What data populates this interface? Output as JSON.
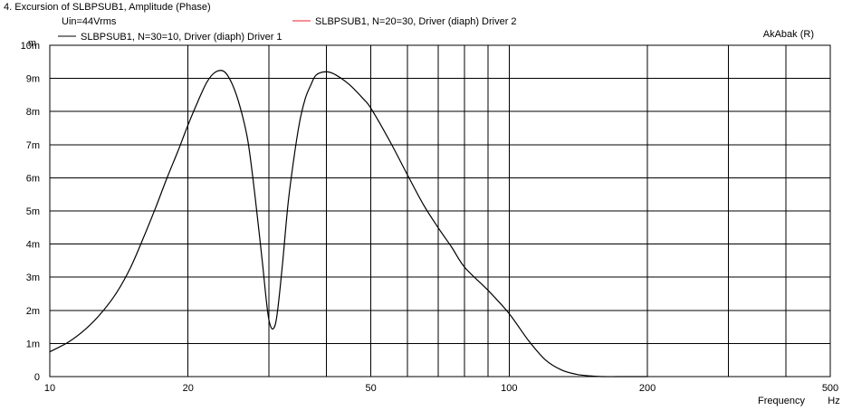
{
  "window": {
    "title": "4. Excursion of SLBPSUB1, Amplitude (Phase)"
  },
  "chart_data": {
    "type": "line",
    "title": "4. Excursion of SLBPSUB1, Amplitude (Phase)",
    "subtitle": "Uin=44Vrms",
    "watermark": "AkAbak (R)",
    "xlabel": "Frequency",
    "xunit": "Hz",
    "yunit": "m",
    "x_scale": "log",
    "xlim": [
      10,
      500
    ],
    "ylim": [
      0,
      0.01
    ],
    "grid": true,
    "x_ticks": [
      {
        "v": 10,
        "label": "10"
      },
      {
        "v": 20,
        "label": "20"
      },
      {
        "v": 30,
        "label": ""
      },
      {
        "v": 40,
        "label": ""
      },
      {
        "v": 50,
        "label": "50"
      },
      {
        "v": 60,
        "label": ""
      },
      {
        "v": 70,
        "label": ""
      },
      {
        "v": 80,
        "label": ""
      },
      {
        "v": 90,
        "label": ""
      },
      {
        "v": 100,
        "label": "100"
      },
      {
        "v": 200,
        "label": "200"
      },
      {
        "v": 300,
        "label": ""
      },
      {
        "v": 400,
        "label": ""
      },
      {
        "v": 500,
        "label": "500"
      }
    ],
    "y_ticks": [
      {
        "v": 0,
        "label": "0"
      },
      {
        "v": 0.001,
        "label": "1m"
      },
      {
        "v": 0.002,
        "label": "2m"
      },
      {
        "v": 0.003,
        "label": "3m"
      },
      {
        "v": 0.004,
        "label": "4m"
      },
      {
        "v": 0.005,
        "label": "5m"
      },
      {
        "v": 0.006,
        "label": "6m"
      },
      {
        "v": 0.007,
        "label": "7m"
      },
      {
        "v": 0.008,
        "label": "8m"
      },
      {
        "v": 0.009,
        "label": "9m"
      },
      {
        "v": 0.01,
        "label": "10m"
      }
    ],
    "series": [
      {
        "name": "SLBPSUB1, N=30=10, Driver (diaph) Driver 1",
        "color": "#000000",
        "x": [
          10,
          11,
          12,
          13,
          14,
          15,
          16,
          17,
          18,
          19,
          20,
          21,
          22,
          23,
          24,
          25,
          26,
          27,
          28,
          29,
          30,
          31,
          32,
          33,
          34,
          35,
          36,
          37,
          38,
          40,
          42,
          45,
          48,
          50,
          55,
          60,
          65,
          70,
          75,
          80,
          90,
          100,
          110,
          120,
          130,
          140,
          150,
          160,
          180,
          200
        ],
        "y": [
          0.00075,
          0.00105,
          0.00145,
          0.00195,
          0.00255,
          0.0033,
          0.0042,
          0.0051,
          0.006,
          0.0068,
          0.0076,
          0.0083,
          0.0089,
          0.0092,
          0.0092,
          0.0088,
          0.0081,
          0.0071,
          0.0054,
          0.0035,
          0.0017,
          0.0016,
          0.0032,
          0.0052,
          0.0066,
          0.0077,
          0.0084,
          0.0088,
          0.0091,
          0.0092,
          0.0091,
          0.0088,
          0.0084,
          0.0081,
          0.0071,
          0.0061,
          0.0052,
          0.0045,
          0.0039,
          0.0033,
          0.0026,
          0.0019,
          0.0011,
          0.0005,
          0.0002,
          7e-05,
          2e-05,
          0.0,
          0.0,
          0.0
        ]
      },
      {
        "name": "SLBPSUB1, N=20=30, Driver (diaph) Driver 2",
        "color": "#e8202a",
        "x": [],
        "y": []
      }
    ]
  }
}
